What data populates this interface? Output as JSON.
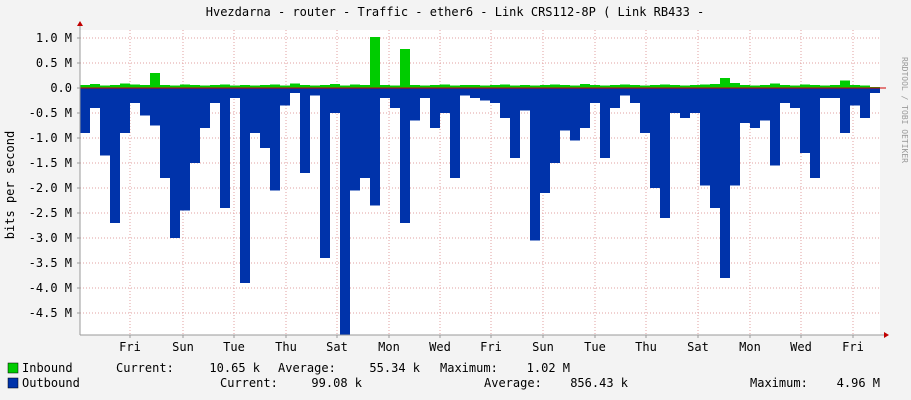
{
  "chart_data": {
    "type": "bar",
    "title": "Hvezdarna - router - Traffic - ether6 - Link CRS112-8P ( Link RB433 -",
    "y_label": "bits per second",
    "watermark": "RRDTOOL / TOBI OETIKER",
    "xlim": [
      0,
      80
    ],
    "xticks": [
      {
        "value": 5,
        "label": "Fri"
      },
      {
        "value": 10.3,
        "label": "Sun"
      },
      {
        "value": 15.4,
        "label": "Tue"
      },
      {
        "value": 20.6,
        "label": "Thu"
      },
      {
        "value": 25.7,
        "label": "Sat"
      },
      {
        "value": 30.9,
        "label": "Mon"
      },
      {
        "value": 36,
        "label": "Wed"
      },
      {
        "value": 41.1,
        "label": "Fri"
      },
      {
        "value": 46.3,
        "label": "Sun"
      },
      {
        "value": 51.5,
        "label": "Tue"
      },
      {
        "value": 56.6,
        "label": "Thu"
      },
      {
        "value": 61.8,
        "label": "Sat"
      },
      {
        "value": 67,
        "label": "Mon"
      },
      {
        "value": 72.1,
        "label": "Wed"
      },
      {
        "value": 77.3,
        "label": "Fri"
      }
    ],
    "ylim": [
      -4940000,
      1160000
    ],
    "yticks": [
      {
        "value": 1000000,
        "label": "1.0 M"
      },
      {
        "value": 500000,
        "label": "0.5 M"
      },
      {
        "value": 0,
        "label": "0.0"
      },
      {
        "value": -500000,
        "label": "-0.5 M"
      },
      {
        "value": -1000000,
        "label": "-1.0 M"
      },
      {
        "value": -1500000,
        "label": "-1.5 M"
      },
      {
        "value": -2000000,
        "label": "-2.0 M"
      },
      {
        "value": -2500000,
        "label": "-2.5 M"
      },
      {
        "value": -3000000,
        "label": "-3.0 M"
      },
      {
        "value": -3500000,
        "label": "-3.5 M"
      },
      {
        "value": -4000000,
        "label": "-4.0 M"
      },
      {
        "value": -4500000,
        "label": "-4.5 M"
      }
    ],
    "grid": true,
    "series": [
      {
        "name": "Inbound",
        "color": "#00cc00",
        "stats": [
          {
            "label": "Current:",
            "value": "10.65 k"
          },
          {
            "label": "Average:",
            "value": "55.34 k"
          },
          {
            "label": "Maximum:",
            "value": "1.02 M"
          }
        ],
        "values": [
          60000,
          80000,
          50000,
          60000,
          90000,
          70000,
          60000,
          300000,
          60000,
          50000,
          70000,
          60000,
          50000,
          60000,
          70000,
          50000,
          60000,
          50000,
          60000,
          70000,
          50000,
          90000,
          60000,
          50000,
          60000,
          80000,
          50000,
          70000,
          60000,
          1020000,
          60000,
          50000,
          780000,
          60000,
          50000,
          60000,
          70000,
          50000,
          60000,
          60000,
          50000,
          60000,
          70000,
          50000,
          60000,
          50000,
          60000,
          70000,
          60000,
          50000,
          80000,
          60000,
          50000,
          60000,
          70000,
          60000,
          50000,
          60000,
          70000,
          60000,
          50000,
          60000,
          70000,
          80000,
          200000,
          100000,
          60000,
          50000,
          60000,
          90000,
          60000,
          50000,
          70000,
          60000,
          50000,
          60000,
          150000,
          60000,
          50000,
          20000
        ]
      },
      {
        "name": "Outbound",
        "color": "#0033aa",
        "stats": [
          {
            "label": "Current:",
            "value": "99.08 k"
          },
          {
            "label": "Average:",
            "value": "856.43 k"
          },
          {
            "label": "Maximum:",
            "value": "4.96 M"
          }
        ],
        "values": [
          -900000,
          -400000,
          -1350000,
          -2700000,
          -900000,
          -300000,
          -550000,
          -750000,
          -1800000,
          -3000000,
          -2450000,
          -1500000,
          -800000,
          -300000,
          -2400000,
          -200000,
          -3900000,
          -900000,
          -1200000,
          -2050000,
          -350000,
          -100000,
          -1700000,
          -150000,
          -3400000,
          -500000,
          -4940000,
          -2050000,
          -1800000,
          -2350000,
          -200000,
          -400000,
          -2700000,
          -650000,
          -200000,
          -800000,
          -500000,
          -1800000,
          -150000,
          -200000,
          -250000,
          -300000,
          -600000,
          -1400000,
          -450000,
          -3050000,
          -2100000,
          -1500000,
          -850000,
          -1050000,
          -800000,
          -300000,
          -1400000,
          -400000,
          -150000,
          -300000,
          -900000,
          -2000000,
          -2600000,
          -500000,
          -600000,
          -500000,
          -1950000,
          -2400000,
          -3800000,
          -1950000,
          -700000,
          -800000,
          -650000,
          -1550000,
          -300000,
          -400000,
          -1300000,
          -1800000,
          -200000,
          -200000,
          -900000,
          -350000,
          -600000,
          -100000
        ]
      }
    ]
  }
}
